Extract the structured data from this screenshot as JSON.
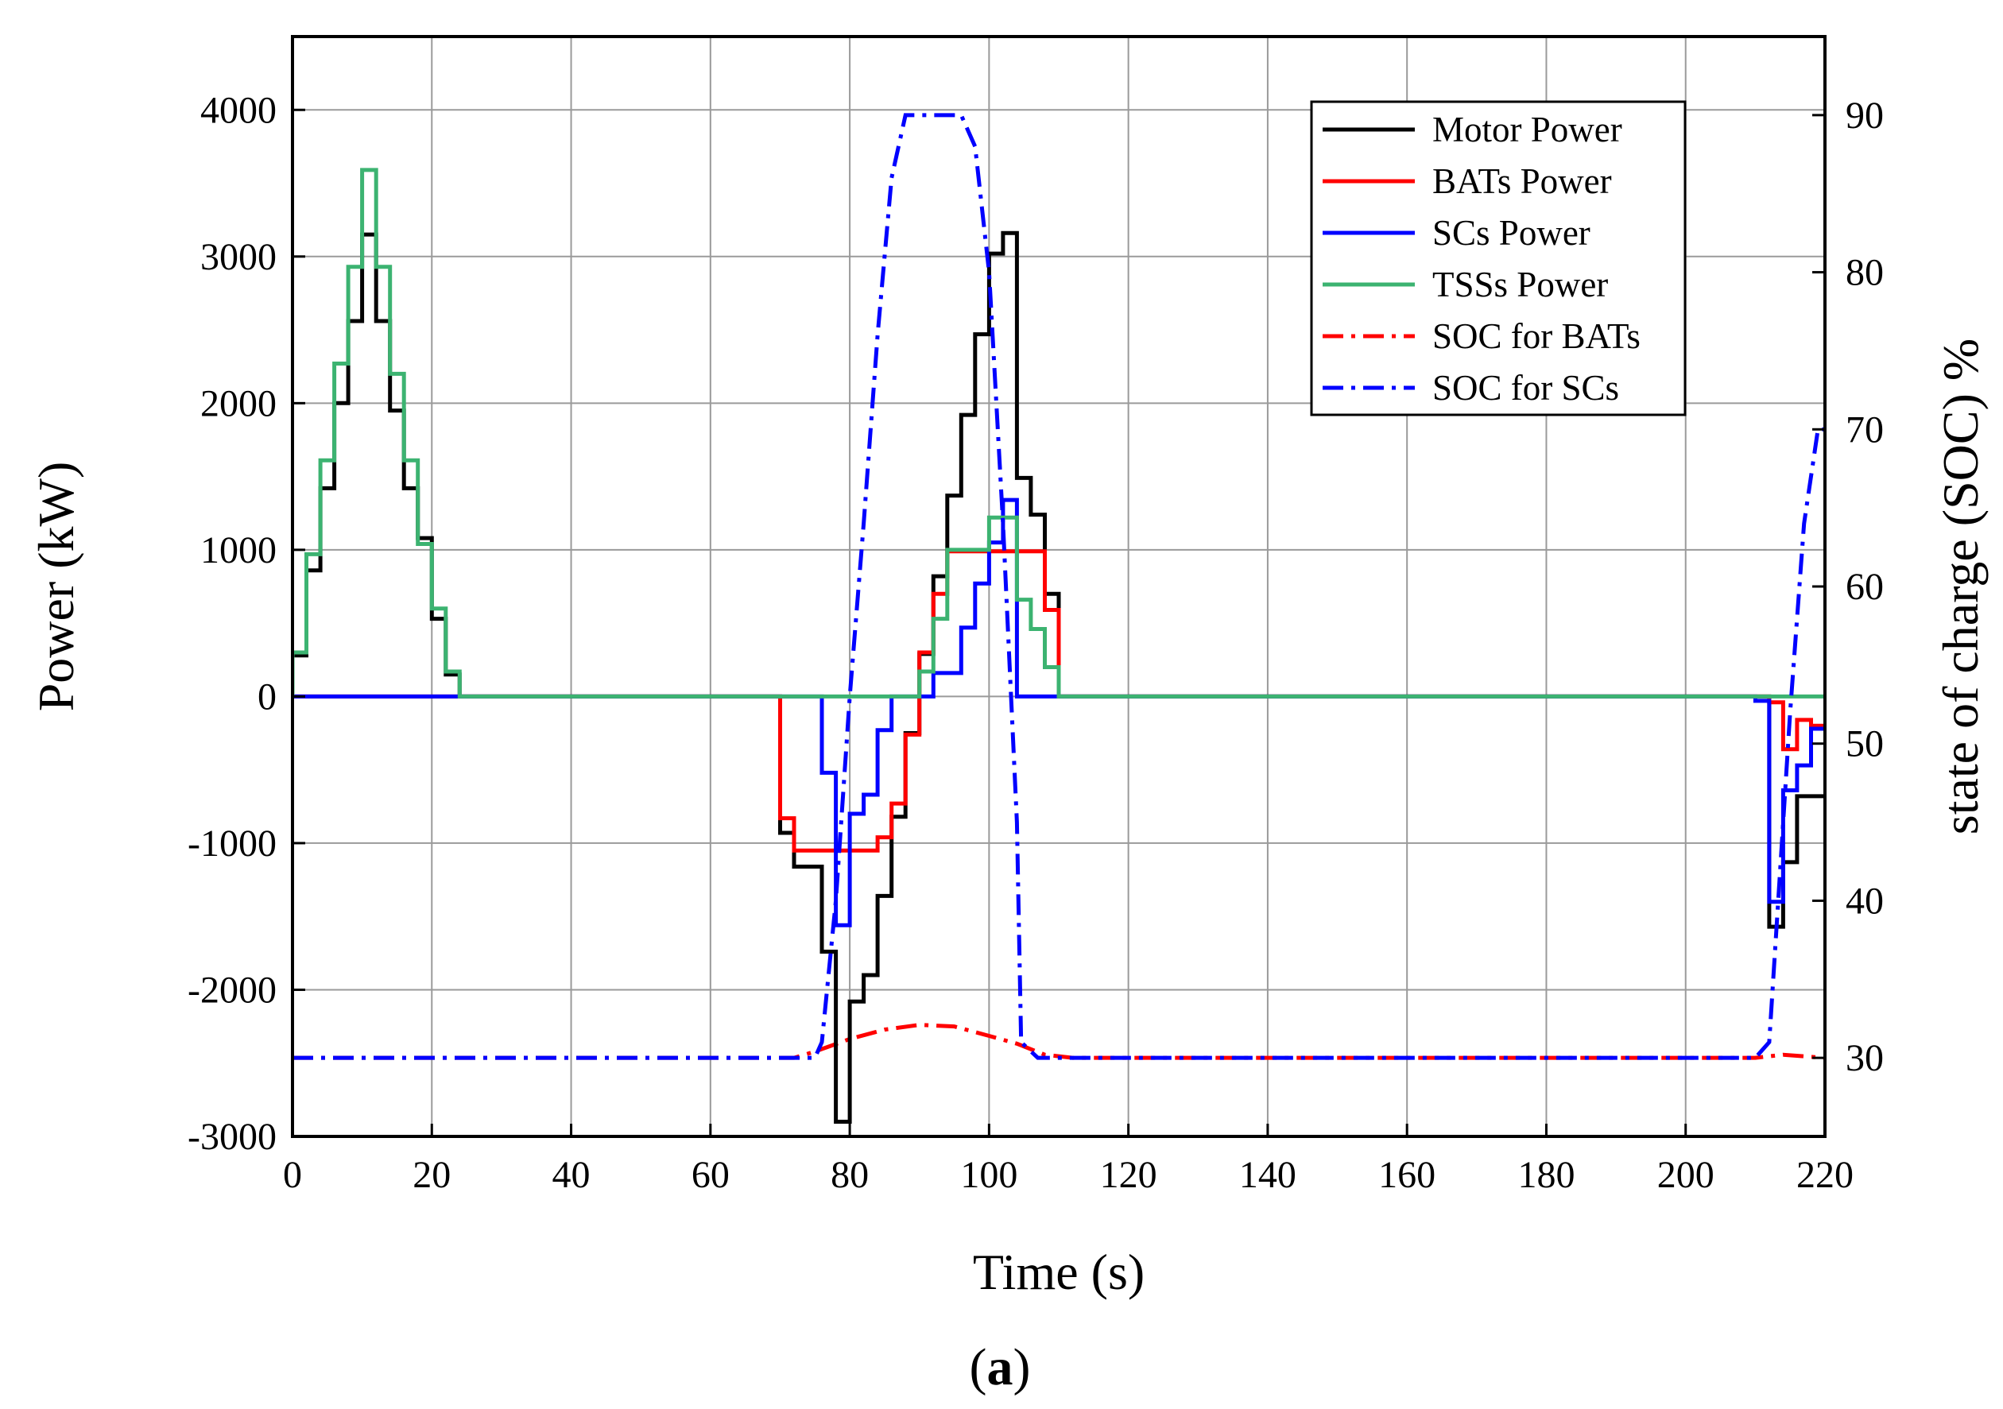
{
  "chart_data": {
    "type": "line",
    "title": "",
    "caption": {
      "open": "(",
      "letter": "a",
      "close": ")"
    },
    "xlabel": "Time (s)",
    "ylabel_left": "Power (kW)",
    "ylabel_right": "state of charge (SOC) %",
    "xlim": [
      0,
      220
    ],
    "ylim_left": [
      -3000,
      4500
    ],
    "ylim_right": [
      25,
      95
    ],
    "grid": true,
    "legend_position": "top-right",
    "x_ticks": [
      0,
      20,
      40,
      60,
      80,
      100,
      120,
      140,
      160,
      180,
      200,
      220
    ],
    "x_tick_labels": [
      "0",
      "20",
      "40",
      "60",
      "80",
      "100",
      "120",
      "140",
      "160",
      "180",
      "200",
      "220"
    ],
    "y_left_ticks": [
      -3000,
      -2000,
      -1000,
      0,
      1000,
      2000,
      3000,
      4000
    ],
    "y_left_tick_labels": [
      "-3000",
      "-2000",
      "-1000",
      "0",
      "1000",
      "2000",
      "3000",
      "4000"
    ],
    "y_right_ticks": [
      30,
      40,
      50,
      60,
      70,
      80,
      90
    ],
    "y_right_tick_labels": [
      "30",
      "40",
      "50",
      "60",
      "70",
      "80",
      "90"
    ],
    "series": [
      {
        "id": "motor",
        "name": "Motor Power",
        "axis": "left",
        "style": "step",
        "color": "#000000",
        "points": [
          [
            0,
            0
          ],
          [
            0,
            280
          ],
          [
            2,
            280
          ],
          [
            2,
            860
          ],
          [
            4,
            860
          ],
          [
            4,
            1420
          ],
          [
            6,
            1420
          ],
          [
            6,
            2000
          ],
          [
            8,
            2000
          ],
          [
            8,
            2560
          ],
          [
            10,
            2560
          ],
          [
            10,
            3150
          ],
          [
            12,
            3150
          ],
          [
            12,
            2560
          ],
          [
            14,
            2560
          ],
          [
            14,
            1950
          ],
          [
            16,
            1950
          ],
          [
            16,
            1420
          ],
          [
            18,
            1420
          ],
          [
            18,
            1080
          ],
          [
            20,
            1080
          ],
          [
            20,
            530
          ],
          [
            22,
            530
          ],
          [
            22,
            150
          ],
          [
            24,
            150
          ],
          [
            24,
            0
          ],
          [
            70,
            0
          ],
          [
            70,
            -930
          ],
          [
            72,
            -930
          ],
          [
            72,
            -1160
          ],
          [
            76,
            -1160
          ],
          [
            76,
            -1740
          ],
          [
            78,
            -1740
          ],
          [
            78,
            -2900
          ],
          [
            80,
            -2900
          ],
          [
            80,
            -2080
          ],
          [
            82,
            -2080
          ],
          [
            82,
            -1900
          ],
          [
            84,
            -1900
          ],
          [
            84,
            -1360
          ],
          [
            86,
            -1360
          ],
          [
            86,
            -820
          ],
          [
            88,
            -820
          ],
          [
            88,
            -250
          ],
          [
            90,
            -250
          ],
          [
            90,
            290
          ],
          [
            92,
            290
          ],
          [
            92,
            820
          ],
          [
            94,
            820
          ],
          [
            94,
            1370
          ],
          [
            96,
            1370
          ],
          [
            96,
            1920
          ],
          [
            98,
            1920
          ],
          [
            98,
            2470
          ],
          [
            100,
            2470
          ],
          [
            100,
            3020
          ],
          [
            102,
            3020
          ],
          [
            102,
            3160
          ],
          [
            104,
            3160
          ],
          [
            104,
            1490
          ],
          [
            106,
            1490
          ],
          [
            106,
            1240
          ],
          [
            108,
            1240
          ],
          [
            108,
            700
          ],
          [
            110,
            700
          ],
          [
            110,
            0
          ],
          [
            212,
            0
          ],
          [
            212,
            -1570
          ],
          [
            214,
            -1570
          ],
          [
            214,
            -1130
          ],
          [
            216,
            -1130
          ],
          [
            216,
            -680
          ],
          [
            220,
            -680
          ]
        ]
      },
      {
        "id": "bats",
        "name": "BATs Power",
        "axis": "left",
        "style": "step",
        "color": "#ff0000",
        "points": [
          [
            0,
            0
          ],
          [
            70,
            0
          ],
          [
            70,
            -830
          ],
          [
            72,
            -830
          ],
          [
            72,
            -1050
          ],
          [
            84,
            -1050
          ],
          [
            84,
            -960
          ],
          [
            86,
            -960
          ],
          [
            86,
            -730
          ],
          [
            88,
            -730
          ],
          [
            88,
            -260
          ],
          [
            90,
            -260
          ],
          [
            90,
            300
          ],
          [
            92,
            300
          ],
          [
            92,
            700
          ],
          [
            94,
            700
          ],
          [
            94,
            990
          ],
          [
            108,
            990
          ],
          [
            108,
            590
          ],
          [
            110,
            590
          ],
          [
            110,
            0
          ],
          [
            212,
            0
          ],
          [
            212,
            -40
          ],
          [
            214,
            -40
          ],
          [
            214,
            -360
          ],
          [
            216,
            -360
          ],
          [
            216,
            -160
          ],
          [
            218,
            -160
          ],
          [
            218,
            -200
          ],
          [
            220,
            -200
          ]
        ]
      },
      {
        "id": "scs",
        "name": "SCs Power",
        "axis": "left",
        "style": "step",
        "color": "#0000ff",
        "points": [
          [
            0,
            0
          ],
          [
            24,
            0
          ],
          [
            76,
            0
          ],
          [
            76,
            -520
          ],
          [
            78,
            -520
          ],
          [
            78,
            -1560
          ],
          [
            80,
            -1560
          ],
          [
            80,
            -800
          ],
          [
            82,
            -800
          ],
          [
            82,
            -670
          ],
          [
            84,
            -670
          ],
          [
            84,
            -230
          ],
          [
            86,
            -230
          ],
          [
            86,
            0
          ],
          [
            92,
            0
          ],
          [
            92,
            160
          ],
          [
            96,
            160
          ],
          [
            96,
            470
          ],
          [
            98,
            470
          ],
          [
            98,
            770
          ],
          [
            100,
            770
          ],
          [
            100,
            1050
          ],
          [
            102,
            1050
          ],
          [
            102,
            1340
          ],
          [
            104,
            1340
          ],
          [
            104,
            0
          ],
          [
            210,
            0
          ],
          [
            210,
            -30
          ],
          [
            212,
            -30
          ],
          [
            212,
            -1400
          ],
          [
            214,
            -1400
          ],
          [
            214,
            -640
          ],
          [
            216,
            -640
          ],
          [
            216,
            -470
          ],
          [
            218,
            -470
          ],
          [
            218,
            -220
          ],
          [
            220,
            -220
          ]
        ]
      },
      {
        "id": "tsss",
        "name": "TSSs Power",
        "axis": "left",
        "style": "step",
        "color": "#3cb371",
        "points": [
          [
            0,
            0
          ],
          [
            0,
            300
          ],
          [
            2,
            300
          ],
          [
            2,
            970
          ],
          [
            4,
            970
          ],
          [
            4,
            1610
          ],
          [
            6,
            1610
          ],
          [
            6,
            2270
          ],
          [
            8,
            2270
          ],
          [
            8,
            2930
          ],
          [
            10,
            2930
          ],
          [
            10,
            3590
          ],
          [
            12,
            3590
          ],
          [
            12,
            2930
          ],
          [
            14,
            2930
          ],
          [
            14,
            2200
          ],
          [
            16,
            2200
          ],
          [
            16,
            1610
          ],
          [
            18,
            1610
          ],
          [
            18,
            1040
          ],
          [
            20,
            1040
          ],
          [
            20,
            600
          ],
          [
            22,
            600
          ],
          [
            22,
            170
          ],
          [
            24,
            170
          ],
          [
            24,
            0
          ],
          [
            90,
            0
          ],
          [
            90,
            170
          ],
          [
            92,
            170
          ],
          [
            92,
            530
          ],
          [
            94,
            530
          ],
          [
            94,
            1000
          ],
          [
            96,
            1000
          ],
          [
            96,
            1000
          ],
          [
            100,
            1000
          ],
          [
            100,
            1220
          ],
          [
            104,
            1220
          ],
          [
            104,
            660
          ],
          [
            106,
            660
          ],
          [
            106,
            460
          ],
          [
            108,
            460
          ],
          [
            108,
            200
          ],
          [
            110,
            200
          ],
          [
            110,
            0
          ],
          [
            220,
            0
          ]
        ]
      },
      {
        "id": "soc-bats",
        "name": "SOC for BATs",
        "axis": "right",
        "style": "dashdot",
        "color": "#ff0000",
        "points": [
          [
            0,
            30
          ],
          [
            72,
            30
          ],
          [
            75,
            30.4
          ],
          [
            80,
            31.2
          ],
          [
            85,
            31.8
          ],
          [
            90,
            32.1
          ],
          [
            95,
            32
          ],
          [
            100,
            31.4
          ],
          [
            104,
            30.9
          ],
          [
            108,
            30.2
          ],
          [
            112,
            30
          ],
          [
            210,
            30
          ],
          [
            214,
            30.2
          ],
          [
            220,
            30
          ]
        ]
      },
      {
        "id": "soc-scs",
        "name": "SOC for SCs",
        "axis": "right",
        "style": "dashdot",
        "color": "#0000ff",
        "points": [
          [
            0,
            30
          ],
          [
            75,
            30
          ],
          [
            76,
            31
          ],
          [
            78,
            40
          ],
          [
            80,
            53
          ],
          [
            82,
            64
          ],
          [
            84,
            76
          ],
          [
            86,
            86
          ],
          [
            88,
            90
          ],
          [
            96,
            90
          ],
          [
            98,
            88
          ],
          [
            100,
            80
          ],
          [
            102,
            64
          ],
          [
            104,
            45
          ],
          [
            104.6,
            31
          ],
          [
            107,
            30
          ],
          [
            210,
            30
          ],
          [
            212,
            31
          ],
          [
            213,
            38
          ],
          [
            215,
            52
          ],
          [
            217,
            64
          ],
          [
            219,
            70
          ],
          [
            220,
            70
          ]
        ]
      }
    ]
  }
}
